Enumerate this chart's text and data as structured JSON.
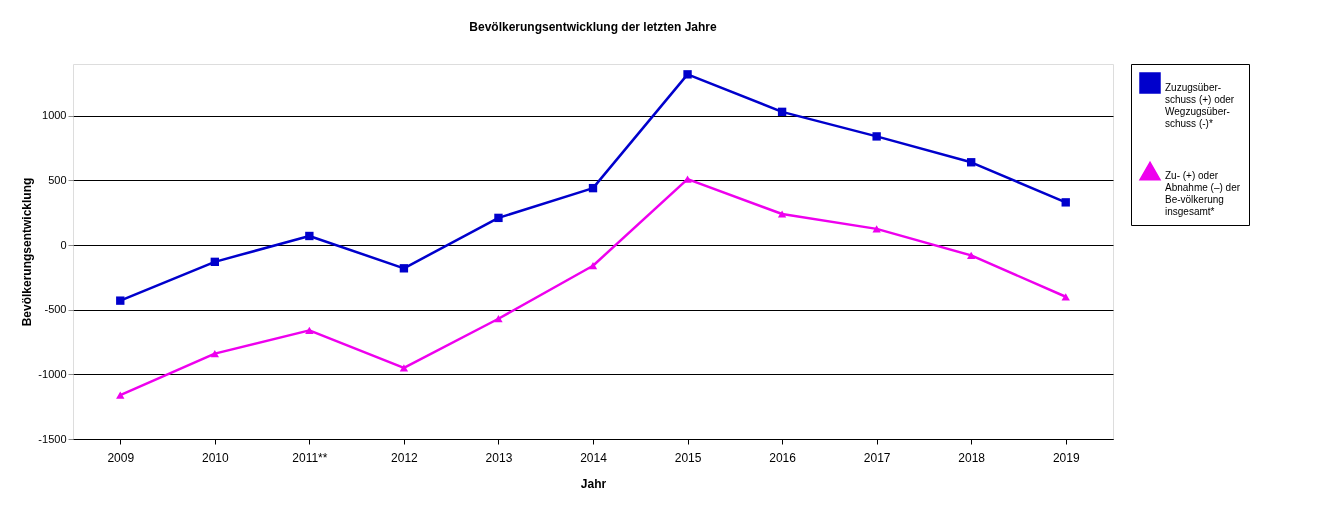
{
  "chart_data": {
    "type": "line",
    "title": "Bevölkerungsentwicklung der letzten Jahre",
    "xlabel": "Jahr",
    "ylabel": "Bevölkerungsentwicklung",
    "categories": [
      "2009",
      "2010",
      "2011**",
      "2012",
      "2013",
      "2014",
      "2015",
      "2016",
      "2017",
      "2018",
      "2019"
    ],
    "series": [
      {
        "name": "Zuzugsüber-schuss (+) oder Wegzugsüber-schuss (-)*",
        "color": "#0000cc",
        "marker": "square",
        "values": [
          -430,
          -130,
          70,
          -180,
          210,
          440,
          1320,
          1030,
          840,
          640,
          330
        ]
      },
      {
        "name": "Zu- (+) oder Abnahme (–) der Be-völkerung insgesamt*",
        "color": "#ee00ee",
        "marker": "triangle",
        "values": [
          -1160,
          -840,
          -660,
          -950,
          -570,
          -160,
          510,
          240,
          125,
          -80,
          -400
        ]
      }
    ],
    "ylim": [
      -1500,
      1400
    ],
    "yticks": [
      -1500,
      -1000,
      -500,
      0,
      500,
      1000
    ],
    "grid": "y",
    "legend": "right",
    "line_style": "solid"
  }
}
